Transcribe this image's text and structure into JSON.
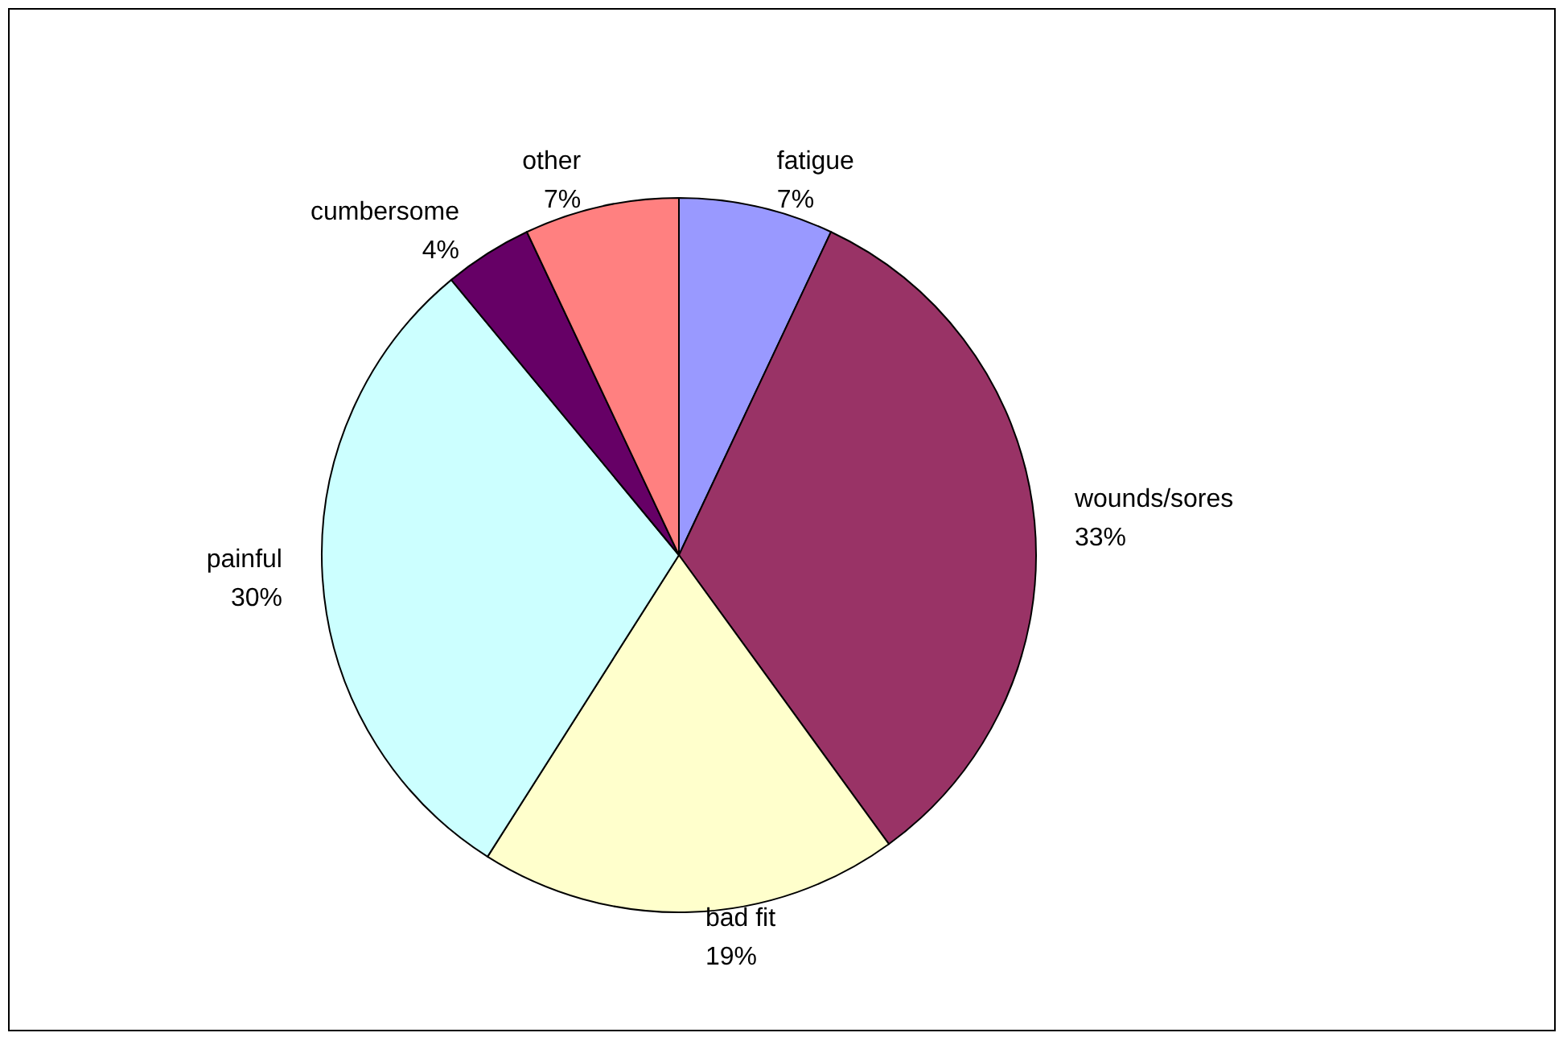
{
  "chart_data": {
    "type": "pie",
    "categories": [
      "fatigue",
      "wounds/sores",
      "bad fit",
      "painful",
      "cumbersome",
      "other"
    ],
    "values": [
      7,
      33,
      19,
      30,
      4,
      7
    ],
    "value_labels": [
      "7%",
      "33%",
      "19%",
      "30%",
      "4%",
      "7%"
    ],
    "colors": [
      "#9999ff",
      "#993366",
      "#ffffcc",
      "#ccffff",
      "#660066",
      "#ff8080"
    ],
    "legend": false
  }
}
